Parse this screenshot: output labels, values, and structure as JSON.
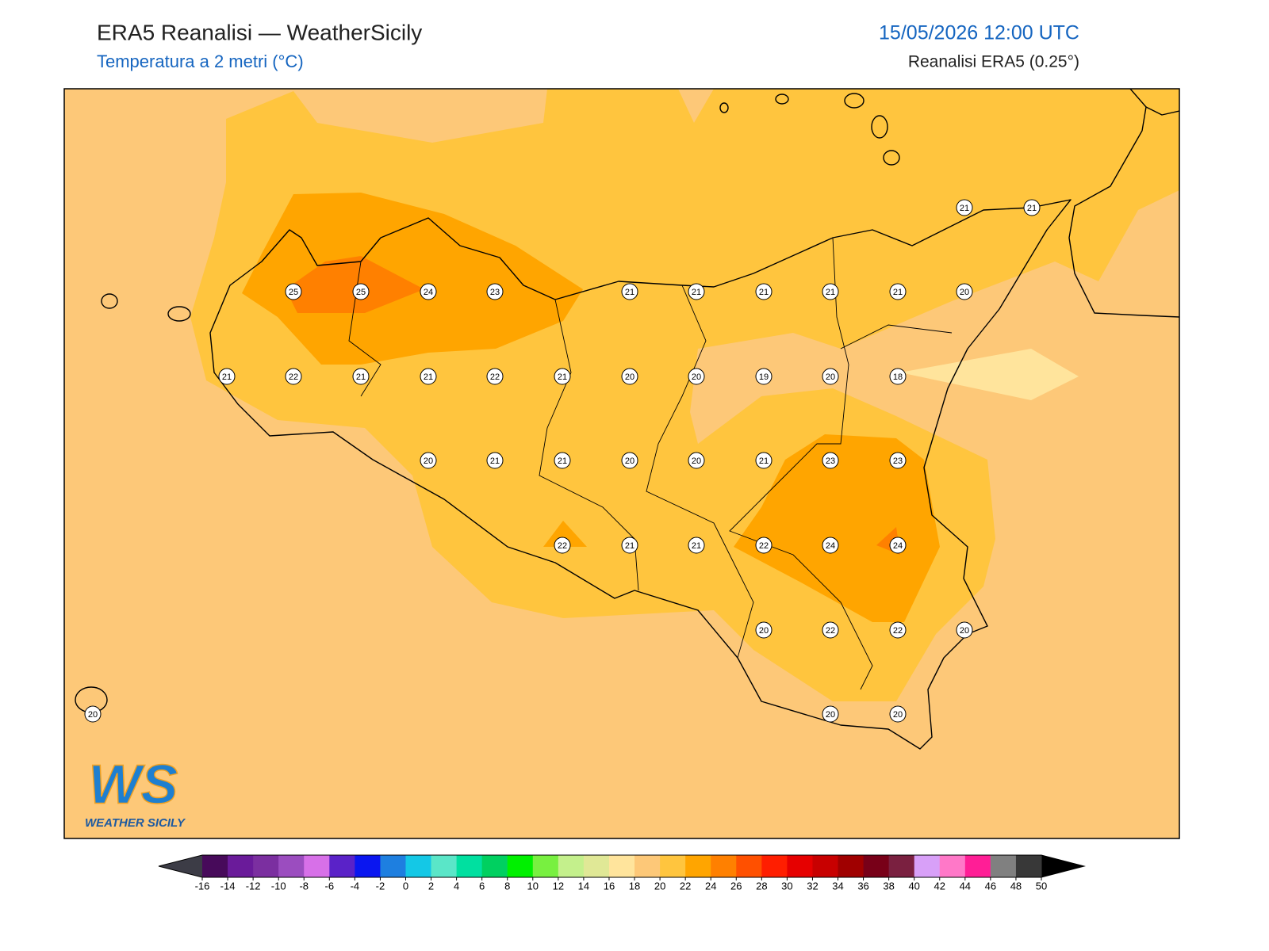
{
  "header": {
    "title": "ERA5 Reanalisi — WeatherSicily",
    "subtitle": "Temperatura a 2 metri (°C)",
    "datetime": "15/05/2026 12:00 UTC",
    "source": "Reanalisi ERA5 (0.25°)"
  },
  "stations": [
    21,
    21,
    25,
    25,
    24,
    23,
    21,
    21,
    21,
    21,
    21,
    20,
    21,
    22,
    21,
    21,
    22,
    21,
    20,
    20,
    19,
    20,
    18,
    20,
    21,
    21,
    20,
    20,
    21,
    23,
    23,
    22,
    21,
    21,
    22,
    24,
    24,
    20,
    22,
    22,
    20,
    20,
    20,
    20
  ],
  "colorbar": {
    "ticks": [
      -16,
      -14,
      -12,
      -10,
      -8,
      -6,
      -4,
      -2,
      0,
      2,
      4,
      6,
      8,
      10,
      12,
      14,
      16,
      18,
      20,
      22,
      24,
      26,
      28,
      30,
      32,
      34,
      36,
      38,
      40,
      42,
      44,
      46,
      48,
      50
    ],
    "colors": [
      "#470a5a",
      "#6a1b9a",
      "#7b2fa0",
      "#9b4dbf",
      "#d770e8",
      "#5a22c8",
      "#0a16f0",
      "#1e7fe0",
      "#14c8e6",
      "#5ae6c8",
      "#00e0a0",
      "#00d060",
      "#00f000",
      "#78f040",
      "#c4f08c",
      "#e0e896",
      "#ffe49c",
      "#fdc878",
      "#ffc53e",
      "#ffa500",
      "#ff8000",
      "#ff5000",
      "#ff1e00",
      "#e60000",
      "#c80000",
      "#a00000",
      "#780018",
      "#7a2040",
      "#d8a0f8",
      "#ff78c8",
      "#ff1e96",
      "#808080",
      "#383838"
    ],
    "under_color": "#3c3c46",
    "over_color": "#000000"
  },
  "logo": {
    "mark": "WS",
    "text": "WEATHER SICILY"
  }
}
